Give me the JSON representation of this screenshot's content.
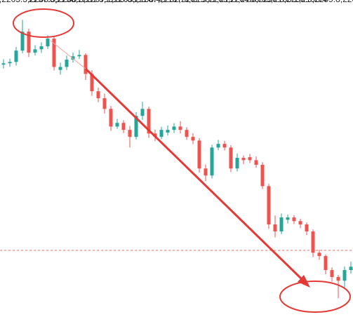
{
  "chart_data": {
    "type": "candlestick",
    "ylim": [
      2180.4,
      2275.6
    ],
    "up_color": "#26a69a",
    "down_color": "#ef5350",
    "price_line": 2200.4,
    "high": [
      2257.8,
      2258.0,
      2261.5,
      2269.65,
      2267.0,
      2262.0,
      2262.9,
      2265.0,
      2264.6,
      2256.8,
      2258.9,
      2259.8,
      2260.6,
      2259.6,
      2254.5,
      2249.3,
      2247.5,
      2243.8,
      2239.9,
      2239.5,
      2237.8,
      2241.9,
      2245.0,
      2243.6,
      2236.7,
      2237.5,
      2237.9,
      2238.6,
      2239.2,
      2237.4,
      2235.6,
      2234.1,
      2226.2,
      2232.1,
      2233.6,
      2233.3,
      2232.0,
      2229.5,
      2228.9,
      2229.4,
      2228.6,
      2226.9,
      2220.4,
      2210.9,
      2211.5,
      2211.2,
      2211.0,
      2209.9,
      2208.8,
      2206.7,
      2200.6,
      2199.2,
      2195.3,
      2193.0,
      2195.6,
      2197.0
    ],
    "low": [
      2255.0,
      2255.5,
      2255.9,
      2259.6,
      2258.5,
      2258.9,
      2259.7,
      2260.9,
      2254.4,
      2253.2,
      2254.6,
      2256.8,
      2257.9,
      2251.6,
      2246.8,
      2244.9,
      2241.5,
      2236.3,
      2236.9,
      2235.6,
      2231.3,
      2233.7,
      2239.6,
      2234.2,
      2233.2,
      2233.8,
      2234.9,
      2235.7,
      2235.5,
      2233.6,
      2232.3,
      2223.8,
      2221.2,
      2222.0,
      2230.5,
      2230.4,
      2223.9,
      2224.1,
      2226.3,
      2226.6,
      2225.2,
      2218.8,
      2206.9,
      2204.3,
      2205.3,
      2208.5,
      2208.3,
      2207.1,
      2205.0,
      2198.4,
      2197.6,
      2193.2,
      2191.0,
      2186.03,
      2189.2,
      2193.4
    ],
    "open": [
      2256.2,
      2256.6,
      2257.0,
      2260.4,
      2266.1,
      2259.8,
      2260.8,
      2261.7,
      2264.0,
      2254.6,
      2255.5,
      2257.7,
      2258.7,
      2259.1,
      2253.4,
      2248.2,
      2246.1,
      2242.9,
      2237.6,
      2238.7,
      2236.6,
      2234.5,
      2240.8,
      2242.9,
      2235.5,
      2234.5,
      2235.8,
      2236.6,
      2237.6,
      2236.6,
      2234.5,
      2233.4,
      2225.0,
      2222.9,
      2231.3,
      2232.4,
      2231.3,
      2225.0,
      2228.2,
      2228.4,
      2227.5,
      2226.1,
      2219.7,
      2208.2,
      2206.1,
      2209.6,
      2210.3,
      2209.2,
      2208.2,
      2206.1,
      2199.7,
      2198.7,
      2194.5,
      2192.4,
      2191.3,
      2194.5
    ],
    "close": [
      2256.6,
      2257.0,
      2260.4,
      2266.1,
      2259.8,
      2260.8,
      2261.7,
      2264.0,
      2255.5,
      2255.5,
      2257.7,
      2258.7,
      2259.1,
      2253.4,
      2248.2,
      2246.1,
      2242.9,
      2237.6,
      2238.7,
      2236.6,
      2234.5,
      2240.8,
      2242.9,
      2235.5,
      2234.5,
      2236.6,
      2236.6,
      2237.6,
      2236.6,
      2234.5,
      2233.4,
      2225.0,
      2222.9,
      2231.3,
      2232.4,
      2231.3,
      2225.0,
      2228.2,
      2227.5,
      2227.5,
      2226.1,
      2219.7,
      2208.2,
      2206.1,
      2210.3,
      2210.3,
      2209.2,
      2208.2,
      2206.1,
      2199.7,
      2198.7,
      2194.5,
      2192.4,
      2191.3,
      2194.5,
      2195.5
    ]
  }
}
